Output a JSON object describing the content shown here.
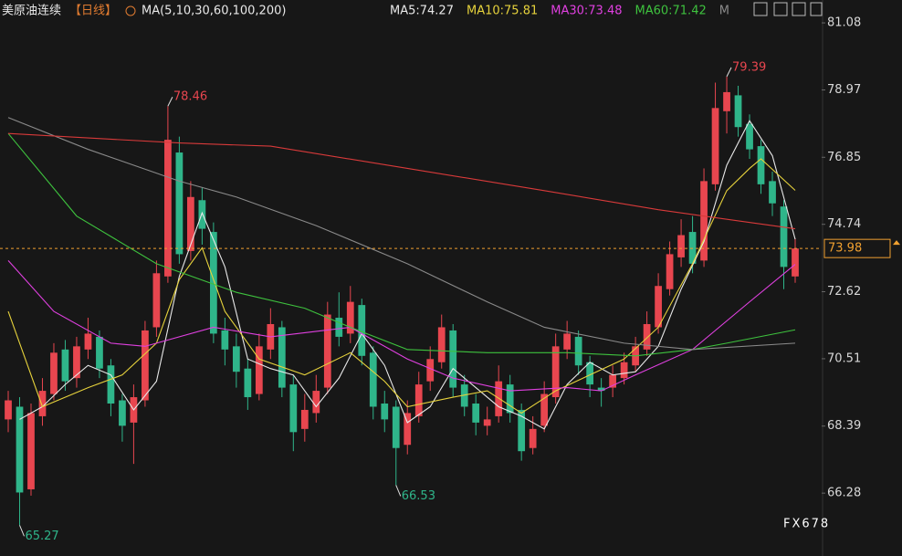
{
  "chart_data": {
    "type": "candlestick",
    "header": {
      "symbol": "美原油连续",
      "period": "【日线】",
      "indicator": "MA(5,10,30,60,100,200)"
    },
    "legend": [
      {
        "text": "MA5:74.27",
        "color": "#e8e8e8"
      },
      {
        "text": "MA10:75.81",
        "color": "#e6d23c"
      },
      {
        "text": "MA30:73.48",
        "color": "#e040e0"
      },
      {
        "text": "MA60:71.42",
        "color": "#3ec23e"
      },
      {
        "text": "M",
        "color": "#8a8a8a"
      }
    ],
    "watermark": "FX678",
    "up_color": "#e8464f",
    "down_color": "#2fb58a",
    "last_price_color": "#f0a030",
    "open": [
      68.6,
      69.0,
      66.4,
      68.7,
      69.4,
      70.8,
      69.9,
      70.8,
      71.2,
      70.3,
      69.2,
      68.5,
      69.2,
      71.5,
      73.1,
      77.0,
      73.9,
      75.5,
      74.5,
      71.4,
      70.9,
      70.2,
      69.4,
      70.8,
      71.5,
      69.7,
      68.3,
      68.8,
      69.6,
      71.8,
      71.3,
      72.2,
      70.7,
      69.1,
      69.0,
      67.8,
      68.7,
      69.8,
      70.4,
      71.4,
      69.7,
      69.1,
      68.4,
      68.7,
      69.7,
      68.9,
      67.7,
      68.4,
      69.3,
      70.8,
      71.2,
      70.4,
      69.6,
      69.6,
      69.9,
      70.3,
      70.8,
      71.5,
      72.7,
      73.7,
      74.5,
      73.6,
      76.0,
      78.3,
      78.8,
      77.9,
      77.2,
      76.1,
      75.3,
      73.1
    ],
    "high": [
      69.5,
      69.3,
      69.1,
      69.9,
      71.0,
      71.1,
      71.2,
      71.8,
      71.4,
      70.5,
      69.4,
      69.7,
      71.7,
      73.6,
      78.46,
      77.5,
      76.1,
      75.9,
      74.8,
      71.8,
      71.3,
      70.5,
      71.3,
      72.1,
      71.7,
      70.0,
      69.4,
      70.0,
      72.3,
      72.6,
      72.8,
      72.4,
      70.9,
      69.5,
      69.2,
      69.2,
      70.1,
      70.9,
      71.9,
      71.6,
      70.0,
      69.4,
      69.0,
      70.3,
      70.0,
      69.1,
      68.7,
      69.8,
      71.3,
      71.7,
      71.4,
      70.6,
      69.9,
      70.3,
      70.7,
      71.2,
      72.0,
      73.2,
      74.2,
      74.9,
      75.0,
      76.5,
      79.2,
      79.39,
      79.1,
      78.2,
      77.4,
      76.4,
      75.5,
      74.3
    ],
    "low": [
      68.2,
      65.27,
      66.2,
      68.4,
      69.2,
      69.5,
      69.6,
      70.5,
      69.9,
      68.7,
      67.9,
      67.2,
      69.0,
      71.2,
      72.9,
      73.5,
      73.6,
      74.1,
      71.0,
      70.3,
      69.6,
      68.9,
      69.2,
      70.5,
      69.3,
      67.6,
      67.9,
      68.5,
      69.4,
      70.9,
      71.0,
      70.3,
      68.6,
      68.2,
      66.53,
      67.5,
      68.5,
      69.5,
      70.2,
      69.3,
      68.7,
      68.1,
      68.1,
      68.5,
      68.5,
      67.3,
      67.5,
      68.2,
      69.1,
      70.5,
      70.0,
      69.3,
      69.0,
      69.3,
      69.7,
      70.1,
      70.6,
      71.3,
      72.5,
      73.4,
      73.2,
      73.4,
      75.8,
      77.6,
      77.5,
      76.8,
      75.7,
      75.0,
      72.7,
      72.9
    ],
    "close": [
      69.2,
      66.3,
      68.8,
      69.5,
      70.7,
      69.8,
      70.9,
      71.3,
      70.2,
      69.1,
      68.4,
      69.3,
      71.4,
      73.2,
      77.4,
      73.8,
      75.6,
      74.6,
      71.3,
      70.8,
      70.1,
      69.3,
      70.9,
      71.6,
      69.6,
      68.2,
      68.9,
      69.5,
      71.9,
      71.2,
      72.3,
      70.6,
      69.0,
      68.6,
      67.7,
      68.8,
      69.7,
      70.5,
      71.5,
      69.6,
      69.0,
      68.5,
      68.6,
      69.8,
      68.8,
      67.6,
      68.3,
      69.4,
      70.9,
      71.3,
      70.3,
      69.7,
      69.5,
      70.0,
      70.4,
      70.9,
      71.6,
      72.8,
      73.8,
      74.4,
      73.5,
      76.1,
      78.4,
      78.9,
      77.8,
      77.1,
      76.0,
      75.4,
      73.4,
      73.98
    ],
    "annotations": [
      {
        "field": "high",
        "index": 14,
        "color": "#e8464f"
      },
      {
        "field": "high",
        "index": 63,
        "color": "#e8464f"
      },
      {
        "field": "low",
        "index": 34,
        "color": "#2fb58a"
      },
      {
        "field": "low",
        "index": 1,
        "color": "#2fb58a"
      }
    ],
    "series": [
      {
        "color": "#e8e8e8",
        "x": [
          1,
          3,
          5,
          7,
          9,
          11,
          13,
          15,
          17,
          19,
          21,
          23,
          25,
          27,
          29,
          31,
          33,
          35,
          37,
          39,
          41,
          43,
          45,
          47,
          49,
          51,
          53,
          55,
          57,
          59,
          61,
          63,
          65,
          67,
          69
        ],
        "values": [
          68.6,
          69.0,
          69.7,
          70.3,
          70.0,
          68.9,
          69.8,
          73.1,
          75.1,
          73.4,
          70.5,
          70.2,
          70.0,
          69.0,
          69.9,
          71.3,
          70.3,
          68.5,
          69.0,
          70.2,
          69.6,
          69.0,
          68.7,
          68.3,
          69.7,
          70.4,
          70.0,
          70.1,
          70.9,
          72.7,
          74.2,
          76.6,
          78.0,
          76.9,
          74.27
        ]
      },
      {
        "color": "#e6d23c",
        "x": [
          0,
          3,
          7,
          10,
          13,
          15,
          17,
          19,
          22,
          26,
          30,
          33,
          35,
          39,
          42,
          45,
          48,
          51,
          54,
          57,
          60,
          63,
          65,
          66,
          69
        ],
        "values": [
          72.0,
          69.0,
          69.6,
          70.0,
          71.0,
          73.0,
          74.0,
          72.0,
          70.5,
          70.0,
          70.7,
          69.8,
          69.0,
          69.3,
          69.5,
          68.8,
          69.5,
          70.0,
          70.5,
          71.5,
          73.5,
          75.8,
          76.5,
          76.8,
          75.81
        ]
      },
      {
        "color": "#e040e0",
        "x": [
          0,
          4,
          9,
          12,
          18,
          23,
          30,
          35,
          39,
          44,
          49,
          52,
          55,
          60,
          65,
          69
        ],
        "values": [
          73.6,
          72.0,
          71.0,
          70.9,
          71.5,
          71.2,
          71.5,
          70.5,
          69.9,
          69.5,
          69.6,
          69.5,
          70.0,
          70.8,
          72.3,
          73.48
        ]
      },
      {
        "color": "#3ec23e",
        "x": [
          0,
          6,
          13,
          20,
          26,
          30,
          35,
          42,
          49,
          55,
          60,
          63,
          69
        ],
        "values": [
          77.6,
          75.0,
          73.5,
          72.6,
          72.1,
          71.5,
          70.8,
          70.7,
          70.7,
          70.6,
          70.8,
          71.0,
          71.42
        ]
      },
      {
        "color": "#8a8a8a",
        "x": [
          0,
          7,
          15,
          20,
          27,
          35,
          42,
          47,
          54,
          60,
          69
        ],
        "values": [
          78.1,
          77.1,
          76.1,
          75.6,
          74.7,
          73.5,
          72.3,
          71.5,
          71.0,
          70.8,
          71.0
        ]
      },
      {
        "color": "#d83a3a",
        "x": [
          0,
          15,
          23,
          35,
          47,
          57,
          69
        ],
        "values": [
          77.6,
          77.3,
          77.2,
          76.5,
          75.8,
          75.2,
          74.6
        ]
      }
    ],
    "ylim": [
      64.56,
      81.8
    ],
    "yticks": [
      81.08,
      78.97,
      76.85,
      74.74,
      72.62,
      70.51,
      68.39,
      66.28
    ]
  }
}
